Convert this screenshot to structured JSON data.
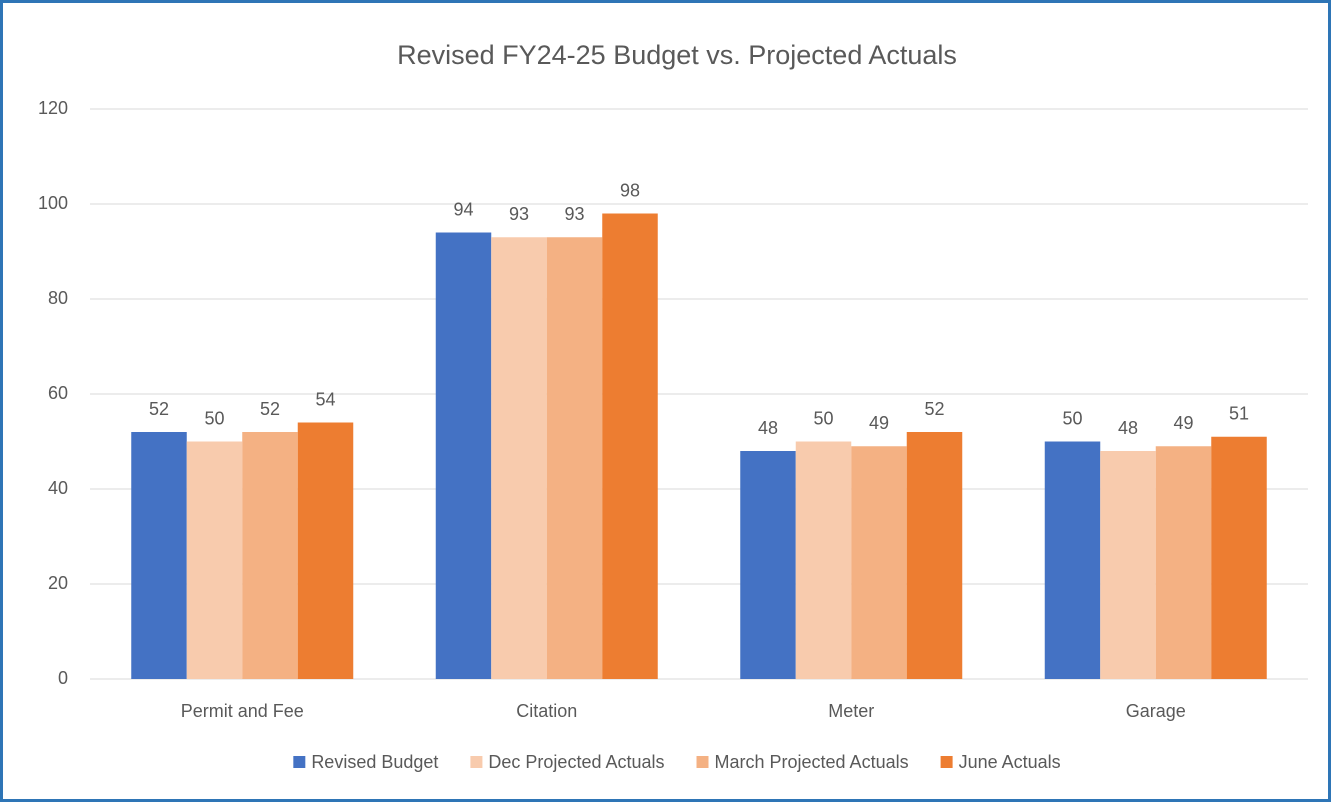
{
  "chart_data": {
    "type": "bar",
    "title": "Revised FY24-25 Budget vs. Projected Actuals",
    "categories": [
      "Permit and Fee",
      "Citation",
      "Meter",
      "Garage"
    ],
    "series": [
      {
        "name": "Revised Budget",
        "color": "#4472c4",
        "values": [
          52,
          94,
          48,
          50
        ]
      },
      {
        "name": "Dec Projected Actuals",
        "color": "#f8cbad",
        "values": [
          50,
          93,
          50,
          48
        ]
      },
      {
        "name": "March Projected Actuals",
        "color": "#f4b183",
        "values": [
          52,
          93,
          49,
          49
        ]
      },
      {
        "name": "June Actuals",
        "color": "#ed7d31",
        "values": [
          54,
          98,
          52,
          51
        ]
      }
    ],
    "ylim": [
      0,
      120
    ],
    "yticks": [
      0,
      20,
      40,
      60,
      80,
      100,
      120
    ],
    "grid": true,
    "legend": "bottom"
  }
}
